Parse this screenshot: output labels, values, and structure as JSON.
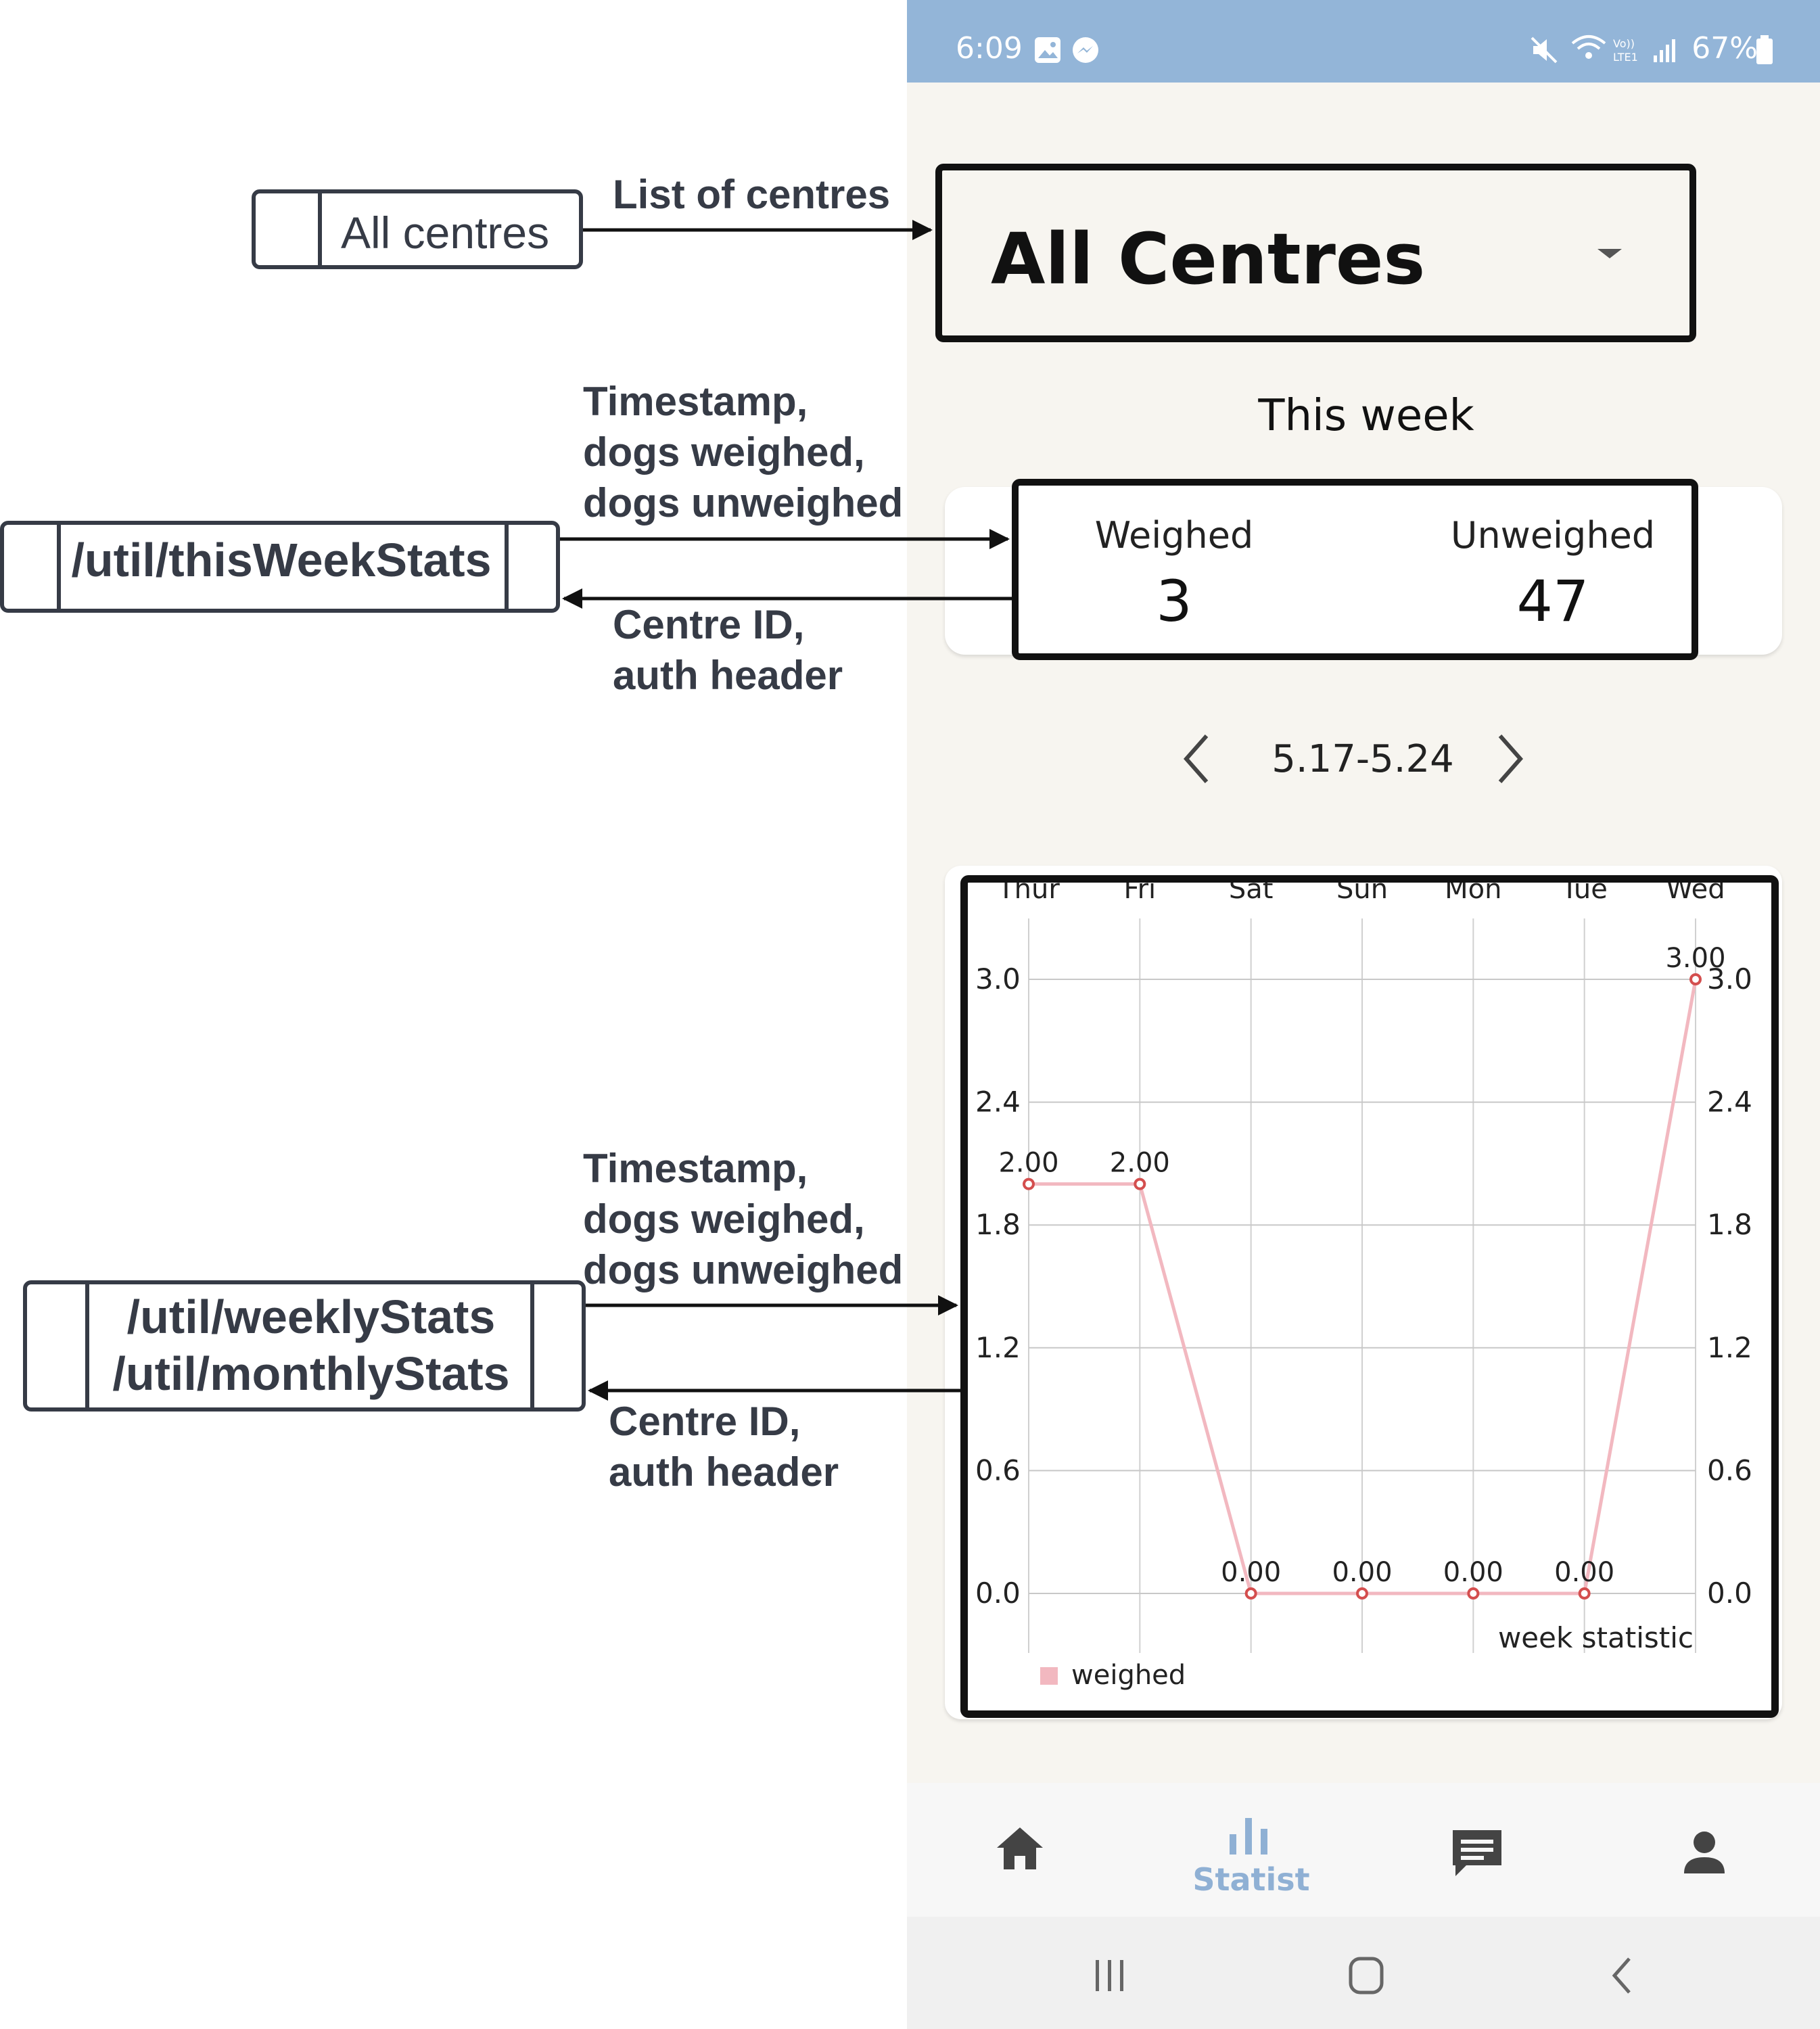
{
  "diagram": {
    "centre_box_label": "All centres",
    "arrow_centres_label": "List of centres",
    "this_week_box_label": "/util/thisWeekStats",
    "this_week_response": [
      "Timestamp,",
      "dogs weighed,",
      "dogs unweighed"
    ],
    "this_week_request": [
      "Centre ID,",
      "auth header"
    ],
    "stats_box_labels": [
      "/util/weeklyStats",
      "/util/monthlyStats"
    ],
    "stats_response": [
      "Timestamp,",
      "dogs weighed,",
      "dogs unweighed"
    ],
    "stats_request": [
      "Centre ID,",
      "auth header"
    ]
  },
  "phone": {
    "status_bar": {
      "time": "6:09",
      "battery": "67%"
    },
    "centre_select": {
      "value": "All Centres"
    },
    "week_title": "This week",
    "stats": {
      "weighed_label": "Weighed",
      "weighed_value": "3",
      "unweighed_label": "Unweighed",
      "unweighed_value": "47"
    },
    "date_range": "5.17-5.24",
    "nav": {
      "active_label": "Statist"
    }
  },
  "colors": {
    "status_bar": "#93b5d8",
    "accent": "#8fb0d4",
    "series": "#f2b8c0",
    "marker": "#d44e4e",
    "diagram_stroke": "#363b46"
  },
  "icons": [
    "image-icon",
    "messenger-icon",
    "mute-icon",
    "wifi-icon",
    "volte-icon",
    "signal-icon",
    "battery-icon",
    "dropdown-caret-icon",
    "chevron-left-icon",
    "chevron-right-icon",
    "home-icon",
    "bar-chart-icon",
    "message-icon",
    "person-icon",
    "recent-apps-icon",
    "home-button-icon",
    "back-icon"
  ],
  "chart_data": {
    "type": "line",
    "categories": [
      "Thur",
      "Fri",
      "Sat",
      "Sun",
      "Mon",
      "Tue",
      "Wed"
    ],
    "series": [
      {
        "name": "weighed",
        "values": [
          2.0,
          2.0,
          0.0,
          0.0,
          0.0,
          0.0,
          3.0
        ]
      }
    ],
    "data_labels": [
      "2.00",
      "2.00",
      "0.00",
      "0.00",
      "0.00",
      "0.00",
      "3.00"
    ],
    "y_ticks": [
      "0.0",
      "0.6",
      "1.2",
      "1.8",
      "2.4",
      "3.0"
    ],
    "ylim": [
      0,
      3.0
    ],
    "annotation": "week statistic",
    "legend": "bottom-left",
    "grid": true
  }
}
